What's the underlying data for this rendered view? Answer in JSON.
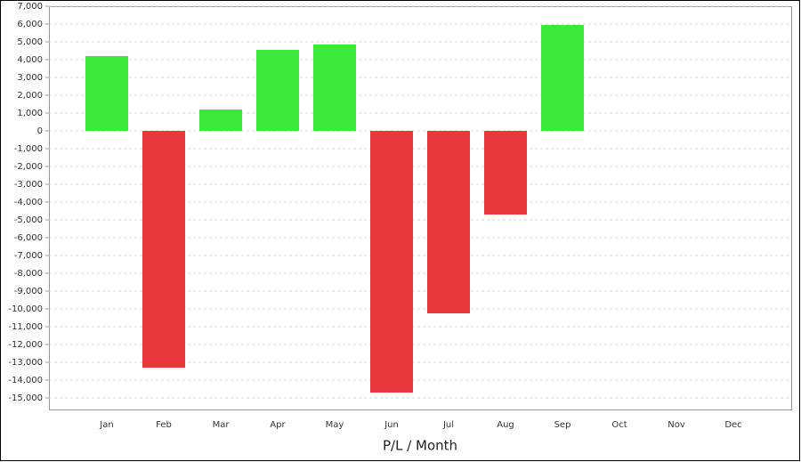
{
  "chart_data": {
    "type": "bar",
    "x_label": "P/L / Month",
    "categories": [
      "Jan",
      "Feb",
      "Mar",
      "Apr",
      "May",
      "Jun",
      "Jul",
      "Aug",
      "Sep",
      "Oct",
      "Nov",
      "Dec"
    ],
    "values": [
      4200,
      -13300,
      1200,
      4550,
      4850,
      -14700,
      -10250,
      -4700,
      5950,
      null,
      null,
      null
    ],
    "positive_color": "#3de83d",
    "negative_color": "#e8393d",
    "ylim": [
      -15650,
      7000
    ],
    "yticks": [
      {
        "value": 7000,
        "label": "7,000"
      },
      {
        "value": 6000,
        "label": "6,000"
      },
      {
        "value": 5000,
        "label": "5,000"
      },
      {
        "value": 4000,
        "label": "4,000"
      },
      {
        "value": 3000,
        "label": "3,000"
      },
      {
        "value": 2000,
        "label": "2,000"
      },
      {
        "value": 1000,
        "label": "1,000"
      },
      0,
      {
        "value": -1000,
        "label": "-1,000"
      },
      {
        "value": -2000,
        "label": "-2,000"
      },
      {
        "value": -3000,
        "label": "-3,000"
      },
      {
        "value": -4000,
        "label": "-4,000"
      },
      {
        "value": -5000,
        "label": "-5,000"
      },
      {
        "value": -6000,
        "label": "-6,000"
      },
      {
        "value": -7000,
        "label": "-7,000"
      },
      {
        "value": -8000,
        "label": "-8,000"
      },
      {
        "value": -9000,
        "label": "-9,000"
      },
      {
        "value": -10000,
        "label": "-10,000"
      },
      {
        "value": -11000,
        "label": "-11,000"
      },
      {
        "value": -12000,
        "label": "-12,000"
      },
      {
        "value": -13000,
        "label": "-13,000"
      },
      {
        "value": -14000,
        "label": "-14,000"
      },
      {
        "value": -15000,
        "label": "-15,000"
      }
    ],
    "grid": true
  }
}
